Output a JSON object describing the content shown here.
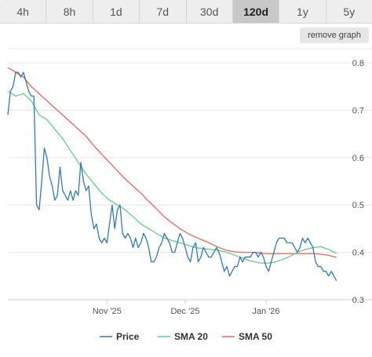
{
  "timeframes": {
    "tabs": [
      "4h",
      "8h",
      "1d",
      "7d",
      "30d",
      "120d",
      "1y",
      "5y"
    ],
    "active": "120d"
  },
  "remove_graph_label": "remove graph",
  "chart_data": {
    "type": "line",
    "x_unit": "day",
    "xlim": [
      "2025-09-24",
      "2026-02-01"
    ],
    "ylim": [
      0.3,
      0.83
    ],
    "y_ticks": [
      0.3,
      0.4,
      0.5,
      0.6,
      0.7,
      0.8
    ],
    "x_ticks": [
      {
        "date": "2025-11-01",
        "label": "Nov '25"
      },
      {
        "date": "2025-12-01",
        "label": "Dec '25"
      },
      {
        "date": "2026-01-01",
        "label": "Jan '26"
      }
    ],
    "grid": "horizontal",
    "legend_position": "bottom",
    "series": [
      {
        "name": "Price",
        "color": "#2f7ab7",
        "points": [
          [
            "2025-09-24",
            0.69
          ],
          [
            "2025-09-25",
            0.74
          ],
          [
            "2025-09-26",
            0.75
          ],
          [
            "2025-09-27",
            0.78
          ],
          [
            "2025-09-28",
            0.78
          ],
          [
            "2025-09-29",
            0.77
          ],
          [
            "2025-09-30",
            0.78
          ],
          [
            "2025-10-01",
            0.76
          ],
          [
            "2025-10-02",
            0.74
          ],
          [
            "2025-10-03",
            0.73
          ],
          [
            "2025-10-04",
            0.73
          ],
          [
            "2025-10-05",
            0.5
          ],
          [
            "2025-10-06",
            0.49
          ],
          [
            "2025-10-07",
            0.55
          ],
          [
            "2025-10-08",
            0.62
          ],
          [
            "2025-10-09",
            0.6
          ],
          [
            "2025-10-10",
            0.56
          ],
          [
            "2025-10-11",
            0.54
          ],
          [
            "2025-10-12",
            0.51
          ],
          [
            "2025-10-13",
            0.52
          ],
          [
            "2025-10-14",
            0.58
          ],
          [
            "2025-10-15",
            0.53
          ],
          [
            "2025-10-16",
            0.52
          ],
          [
            "2025-10-17",
            0.51
          ],
          [
            "2025-10-18",
            0.53
          ],
          [
            "2025-10-19",
            0.51
          ],
          [
            "2025-10-20",
            0.53
          ],
          [
            "2025-10-21",
            0.52
          ],
          [
            "2025-10-22",
            0.59
          ],
          [
            "2025-10-23",
            0.55
          ],
          [
            "2025-10-24",
            0.53
          ],
          [
            "2025-10-25",
            0.54
          ],
          [
            "2025-10-26",
            0.48
          ],
          [
            "2025-10-27",
            0.45
          ],
          [
            "2025-10-28",
            0.46
          ],
          [
            "2025-10-29",
            0.43
          ],
          [
            "2025-10-30",
            0.42
          ],
          [
            "2025-10-31",
            0.43
          ],
          [
            "2025-11-01",
            0.42
          ],
          [
            "2025-11-02",
            0.46
          ],
          [
            "2025-11-03",
            0.5
          ],
          [
            "2025-11-04",
            0.45
          ],
          [
            "2025-11-05",
            0.49
          ],
          [
            "2025-11-06",
            0.5
          ],
          [
            "2025-11-07",
            0.44
          ],
          [
            "2025-11-08",
            0.43
          ],
          [
            "2025-11-09",
            0.44
          ],
          [
            "2025-11-10",
            0.43
          ],
          [
            "2025-11-11",
            0.41
          ],
          [
            "2025-11-12",
            0.43
          ],
          [
            "2025-11-13",
            0.41
          ],
          [
            "2025-11-14",
            0.42
          ],
          [
            "2025-11-15",
            0.44
          ],
          [
            "2025-11-16",
            0.43
          ],
          [
            "2025-11-17",
            0.41
          ],
          [
            "2025-11-18",
            0.38
          ],
          [
            "2025-11-19",
            0.38
          ],
          [
            "2025-11-20",
            0.39
          ],
          [
            "2025-11-21",
            0.41
          ],
          [
            "2025-11-22",
            0.42
          ],
          [
            "2025-11-23",
            0.44
          ],
          [
            "2025-11-24",
            0.43
          ],
          [
            "2025-11-25",
            0.42
          ],
          [
            "2025-11-26",
            0.4
          ],
          [
            "2025-11-27",
            0.4
          ],
          [
            "2025-11-28",
            0.42
          ],
          [
            "2025-11-29",
            0.44
          ],
          [
            "2025-11-30",
            0.43
          ],
          [
            "2025-12-01",
            0.41
          ],
          [
            "2025-12-02",
            0.39
          ],
          [
            "2025-12-03",
            0.38
          ],
          [
            "2025-12-04",
            0.41
          ],
          [
            "2025-12-05",
            0.42
          ],
          [
            "2025-12-06",
            0.38
          ],
          [
            "2025-12-07",
            0.39
          ],
          [
            "2025-12-08",
            0.41
          ],
          [
            "2025-12-09",
            0.4
          ],
          [
            "2025-12-10",
            0.39
          ],
          [
            "2025-12-11",
            0.39
          ],
          [
            "2025-12-12",
            0.4
          ],
          [
            "2025-12-13",
            0.41
          ],
          [
            "2025-12-14",
            0.4
          ],
          [
            "2025-12-15",
            0.38
          ],
          [
            "2025-12-16",
            0.36
          ],
          [
            "2025-12-17",
            0.37
          ],
          [
            "2025-12-18",
            0.35
          ],
          [
            "2025-12-19",
            0.36
          ],
          [
            "2025-12-20",
            0.37
          ],
          [
            "2025-12-21",
            0.37
          ],
          [
            "2025-12-22",
            0.39
          ],
          [
            "2025-12-23",
            0.38
          ],
          [
            "2025-12-24",
            0.39
          ],
          [
            "2025-12-25",
            0.39
          ],
          [
            "2025-12-26",
            0.39
          ],
          [
            "2025-12-27",
            0.4
          ],
          [
            "2025-12-28",
            0.4
          ],
          [
            "2025-12-29",
            0.39
          ],
          [
            "2025-12-30",
            0.4
          ],
          [
            "2025-12-31",
            0.39
          ],
          [
            "2026-01-01",
            0.37
          ],
          [
            "2026-01-02",
            0.36
          ],
          [
            "2026-01-03",
            0.38
          ],
          [
            "2026-01-04",
            0.4
          ],
          [
            "2026-01-05",
            0.42
          ],
          [
            "2026-01-06",
            0.43
          ],
          [
            "2026-01-07",
            0.43
          ],
          [
            "2026-01-08",
            0.43
          ],
          [
            "2026-01-09",
            0.42
          ],
          [
            "2026-01-10",
            0.42
          ],
          [
            "2026-01-11",
            0.42
          ],
          [
            "2026-01-12",
            0.41
          ],
          [
            "2026-01-13",
            0.4
          ],
          [
            "2026-01-14",
            0.41
          ],
          [
            "2026-01-15",
            0.43
          ],
          [
            "2026-01-16",
            0.42
          ],
          [
            "2026-01-17",
            0.43
          ],
          [
            "2026-01-18",
            0.42
          ],
          [
            "2026-01-19",
            0.41
          ],
          [
            "2026-01-20",
            0.38
          ],
          [
            "2026-01-21",
            0.37
          ],
          [
            "2026-01-22",
            0.37
          ],
          [
            "2026-01-23",
            0.36
          ],
          [
            "2026-01-24",
            0.36
          ],
          [
            "2026-01-25",
            0.35
          ],
          [
            "2026-01-26",
            0.36
          ],
          [
            "2026-01-27",
            0.35
          ],
          [
            "2026-01-28",
            0.34
          ]
        ]
      },
      {
        "name": "SMA 20",
        "color": "#5fcf8a",
        "points": [
          [
            "2025-09-24",
            0.74
          ],
          [
            "2025-09-27",
            0.73
          ],
          [
            "2025-09-30",
            0.735
          ],
          [
            "2025-10-03",
            0.72
          ],
          [
            "2025-10-06",
            0.69
          ],
          [
            "2025-10-09",
            0.68
          ],
          [
            "2025-10-12",
            0.66
          ],
          [
            "2025-10-15",
            0.64
          ],
          [
            "2025-10-18",
            0.615
          ],
          [
            "2025-10-21",
            0.59
          ],
          [
            "2025-10-24",
            0.565
          ],
          [
            "2025-10-27",
            0.545
          ],
          [
            "2025-10-30",
            0.525
          ],
          [
            "2025-11-02",
            0.51
          ],
          [
            "2025-11-05",
            0.5
          ],
          [
            "2025-11-08",
            0.49
          ],
          [
            "2025-11-11",
            0.475
          ],
          [
            "2025-11-14",
            0.46
          ],
          [
            "2025-11-17",
            0.45
          ],
          [
            "2025-11-20",
            0.44
          ],
          [
            "2025-11-23",
            0.43
          ],
          [
            "2025-11-26",
            0.425
          ],
          [
            "2025-11-29",
            0.42
          ],
          [
            "2025-12-02",
            0.415
          ],
          [
            "2025-12-05",
            0.41
          ],
          [
            "2025-12-08",
            0.408
          ],
          [
            "2025-12-11",
            0.406
          ],
          [
            "2025-12-14",
            0.404
          ],
          [
            "2025-12-17",
            0.4
          ],
          [
            "2025-12-20",
            0.394
          ],
          [
            "2025-12-23",
            0.388
          ],
          [
            "2025-12-26",
            0.382
          ],
          [
            "2025-12-29",
            0.378
          ],
          [
            "2026-01-01",
            0.377
          ],
          [
            "2026-01-04",
            0.379
          ],
          [
            "2026-01-07",
            0.384
          ],
          [
            "2026-01-10",
            0.391
          ],
          [
            "2026-01-13",
            0.4
          ],
          [
            "2026-01-16",
            0.406
          ],
          [
            "2026-01-19",
            0.41
          ],
          [
            "2026-01-22",
            0.412
          ],
          [
            "2026-01-25",
            0.406
          ],
          [
            "2026-01-28",
            0.398
          ]
        ]
      },
      {
        "name": "SMA 50",
        "color": "#e8675e",
        "points": [
          [
            "2025-09-24",
            0.79
          ],
          [
            "2025-09-27",
            0.78
          ],
          [
            "2025-09-30",
            0.77
          ],
          [
            "2025-10-03",
            0.75
          ],
          [
            "2025-10-06",
            0.735
          ],
          [
            "2025-10-09",
            0.72
          ],
          [
            "2025-10-12",
            0.705
          ],
          [
            "2025-10-15",
            0.69
          ],
          [
            "2025-10-18",
            0.675
          ],
          [
            "2025-10-21",
            0.66
          ],
          [
            "2025-10-24",
            0.645
          ],
          [
            "2025-10-27",
            0.625
          ],
          [
            "2025-10-30",
            0.607
          ],
          [
            "2025-11-02",
            0.59
          ],
          [
            "2025-11-05",
            0.572
          ],
          [
            "2025-11-08",
            0.555
          ],
          [
            "2025-11-11",
            0.54
          ],
          [
            "2025-11-14",
            0.525
          ],
          [
            "2025-11-17",
            0.508
          ],
          [
            "2025-11-20",
            0.492
          ],
          [
            "2025-11-23",
            0.475
          ],
          [
            "2025-11-26",
            0.462
          ],
          [
            "2025-11-29",
            0.45
          ],
          [
            "2025-12-02",
            0.44
          ],
          [
            "2025-12-05",
            0.432
          ],
          [
            "2025-12-08",
            0.425
          ],
          [
            "2025-12-11",
            0.418
          ],
          [
            "2025-12-14",
            0.41
          ],
          [
            "2025-12-17",
            0.404
          ],
          [
            "2025-12-20",
            0.401
          ],
          [
            "2025-12-23",
            0.4
          ],
          [
            "2025-12-26",
            0.4
          ],
          [
            "2025-12-29",
            0.399
          ],
          [
            "2026-01-01",
            0.397
          ],
          [
            "2026-01-04",
            0.397
          ],
          [
            "2026-01-07",
            0.397
          ],
          [
            "2026-01-10",
            0.397
          ],
          [
            "2026-01-13",
            0.397
          ],
          [
            "2026-01-16",
            0.397
          ],
          [
            "2026-01-19",
            0.397
          ],
          [
            "2026-01-22",
            0.396
          ],
          [
            "2026-01-25",
            0.394
          ],
          [
            "2026-01-28",
            0.389
          ]
        ]
      }
    ]
  }
}
